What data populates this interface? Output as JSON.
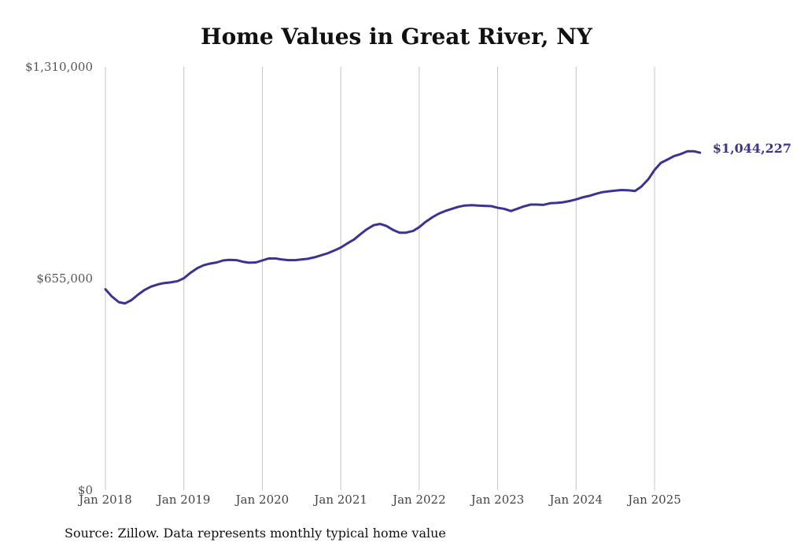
{
  "chart_data": {
    "type": "line",
    "title": "Home Values in Great River, NY",
    "xlabel": "",
    "ylabel": "",
    "ylim": [
      0,
      1310000
    ],
    "y_ticks": [
      {
        "value": 0,
        "label": "$0"
      },
      {
        "value": 655000,
        "label": "$655,000"
      },
      {
        "value": 1310000,
        "label": "$1,310,000"
      }
    ],
    "x_ticks": [
      {
        "value": 2018.0,
        "label": "Jan 2018"
      },
      {
        "value": 2019.0,
        "label": "Jan 2019"
      },
      {
        "value": 2020.0,
        "label": "Jan 2020"
      },
      {
        "value": 2021.0,
        "label": "Jan 2021"
      },
      {
        "value": 2022.0,
        "label": "Jan 2022"
      },
      {
        "value": 2023.0,
        "label": "Jan 2023"
      },
      {
        "value": 2024.0,
        "label": "Jan 2024"
      },
      {
        "value": 2025.0,
        "label": "Jan 2025"
      }
    ],
    "xlim": [
      2017.8,
      2025.9
    ],
    "grid": "vertical",
    "line_color": "#3a3393",
    "end_label": "$1,044,227",
    "series": [
      {
        "points": [
          [
            2018.0,
            622000
          ],
          [
            2018.08,
            600000
          ],
          [
            2018.17,
            582000
          ],
          [
            2018.25,
            578000
          ],
          [
            2018.33,
            588000
          ],
          [
            2018.42,
            606000
          ],
          [
            2018.5,
            620000
          ],
          [
            2018.58,
            630000
          ],
          [
            2018.67,
            637000
          ],
          [
            2018.75,
            641000
          ],
          [
            2018.83,
            643000
          ],
          [
            2018.92,
            647000
          ],
          [
            2019.0,
            656000
          ],
          [
            2019.08,
            672000
          ],
          [
            2019.17,
            687000
          ],
          [
            2019.25,
            696000
          ],
          [
            2019.33,
            701000
          ],
          [
            2019.42,
            705000
          ],
          [
            2019.5,
            711000
          ],
          [
            2019.58,
            713000
          ],
          [
            2019.67,
            712000
          ],
          [
            2019.75,
            707000
          ],
          [
            2019.83,
            704000
          ],
          [
            2019.92,
            705000
          ],
          [
            2020.0,
            711000
          ],
          [
            2020.08,
            717000
          ],
          [
            2020.17,
            717000
          ],
          [
            2020.25,
            714000
          ],
          [
            2020.33,
            712000
          ],
          [
            2020.42,
            712000
          ],
          [
            2020.5,
            714000
          ],
          [
            2020.58,
            716000
          ],
          [
            2020.67,
            721000
          ],
          [
            2020.75,
            727000
          ],
          [
            2020.83,
            733000
          ],
          [
            2020.92,
            742000
          ],
          [
            2021.0,
            751000
          ],
          [
            2021.08,
            763000
          ],
          [
            2021.17,
            776000
          ],
          [
            2021.25,
            792000
          ],
          [
            2021.33,
            807000
          ],
          [
            2021.42,
            820000
          ],
          [
            2021.5,
            824000
          ],
          [
            2021.58,
            818000
          ],
          [
            2021.67,
            805000
          ],
          [
            2021.75,
            797000
          ],
          [
            2021.83,
            797000
          ],
          [
            2021.92,
            802000
          ],
          [
            2022.0,
            814000
          ],
          [
            2022.08,
            830000
          ],
          [
            2022.17,
            845000
          ],
          [
            2022.25,
            856000
          ],
          [
            2022.33,
            864000
          ],
          [
            2022.42,
            871000
          ],
          [
            2022.5,
            877000
          ],
          [
            2022.58,
            881000
          ],
          [
            2022.67,
            882000
          ],
          [
            2022.75,
            881000
          ],
          [
            2022.83,
            880000
          ],
          [
            2022.92,
            879000
          ],
          [
            2023.0,
            874000
          ],
          [
            2023.08,
            871000
          ],
          [
            2023.17,
            864000
          ],
          [
            2023.25,
            871000
          ],
          [
            2023.33,
            878000
          ],
          [
            2023.42,
            884000
          ],
          [
            2023.5,
            884000
          ],
          [
            2023.58,
            883000
          ],
          [
            2023.67,
            888000
          ],
          [
            2023.75,
            889000
          ],
          [
            2023.83,
            891000
          ],
          [
            2023.92,
            895000
          ],
          [
            2024.0,
            900000
          ],
          [
            2024.08,
            906000
          ],
          [
            2024.17,
            911000
          ],
          [
            2024.25,
            917000
          ],
          [
            2024.33,
            922000
          ],
          [
            2024.42,
            925000
          ],
          [
            2024.5,
            927000
          ],
          [
            2024.58,
            929000
          ],
          [
            2024.67,
            928000
          ],
          [
            2024.75,
            926000
          ],
          [
            2024.83,
            939000
          ],
          [
            2024.92,
            962000
          ],
          [
            2025.0,
            991000
          ],
          [
            2025.08,
            1013000
          ],
          [
            2025.17,
            1024000
          ],
          [
            2025.25,
            1034000
          ],
          [
            2025.33,
            1040000
          ],
          [
            2025.42,
            1049000
          ],
          [
            2025.5,
            1049000
          ],
          [
            2025.58,
            1044227
          ]
        ]
      }
    ]
  },
  "source": "Source: Zillow. Data represents monthly typical home value"
}
